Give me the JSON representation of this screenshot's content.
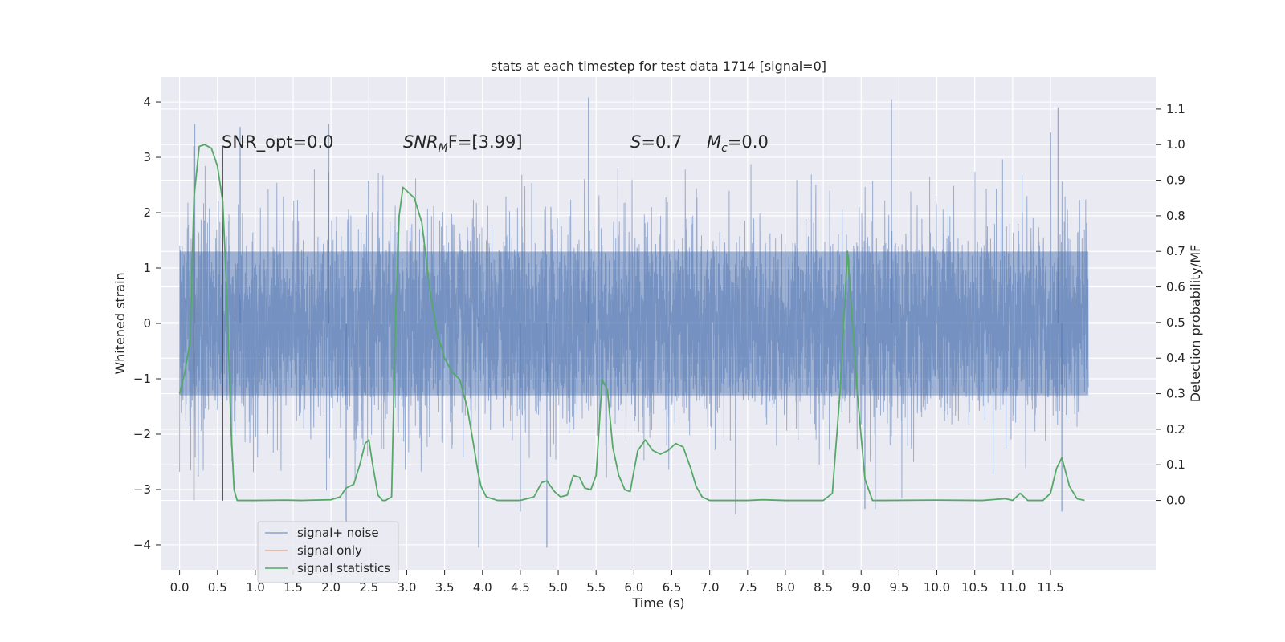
{
  "chart_data": {
    "type": "line",
    "title": "stats at each timestep for test data 1714 [signal=0]",
    "xlabel": "Time (s)",
    "ylabel": "Whitened strain",
    "ylabel_right": "Detection probability/MF",
    "xlim": [
      -0.25,
      12.9
    ],
    "ylim": [
      -4.45,
      4.45
    ],
    "ylim_right": [
      -0.195,
      1.19
    ],
    "x_ticks": [
      "0.0",
      "0.5",
      "1.0",
      "1.5",
      "2.0",
      "2.5",
      "3.0",
      "3.5",
      "4.0",
      "4.5",
      "5.0",
      "5.5",
      "6.0",
      "6.5",
      "7.0",
      "7.5",
      "8.0",
      "8.5",
      "9.0",
      "9.5",
      "10.0",
      "10.5",
      "11.0",
      "11.5"
    ],
    "y_ticks": [
      "4",
      "3",
      "2",
      "1",
      "0",
      "−1",
      "−2",
      "−3",
      "−4"
    ],
    "y_ticks_right": [
      "1.1",
      "1.0",
      "0.9",
      "0.8",
      "0.7",
      "0.6",
      "0.5",
      "0.4",
      "0.3",
      "0.2",
      "0.1",
      "0.0"
    ],
    "grid": true,
    "legend_position": "lower-left",
    "annotations": {
      "snr_opt": "SNR_opt=0.0",
      "snr_mf_base": "SNR",
      "snr_mf_sub": "M",
      "snr_mf_rest": "F=[3.99]",
      "s_var": "S",
      "s_rest": "=0.7",
      "mc_var": "M",
      "mc_sub": "c",
      "mc_rest": "=0.0"
    },
    "markers": {
      "x": [
        0.19,
        0.57
      ],
      "y_range": [
        -3.2,
        3.2
      ]
    },
    "series": [
      {
        "name": "signal+ noise",
        "color": "#4c72b0",
        "kind": "noise",
        "x_range": [
          0.0,
          12.0
        ],
        "band": [
          -1.3,
          1.3
        ],
        "extremes": [
          [
            0.2,
            3.6
          ],
          [
            0.8,
            3.55
          ],
          [
            1.97,
            3.6
          ],
          [
            5.4,
            4.08
          ],
          [
            9.4,
            4.05
          ],
          [
            11.6,
            3.9
          ],
          [
            3.95,
            -4.05
          ],
          [
            4.85,
            -4.05
          ],
          [
            2.2,
            -3.6
          ],
          [
            4.5,
            -3.4
          ],
          [
            11.65,
            -3.4
          ],
          [
            9.05,
            -3.35
          ]
        ]
      },
      {
        "name": "signal only",
        "color": "#dd8452",
        "kind": "line",
        "x": [],
        "y": []
      },
      {
        "name": "signal statistics",
        "color": "#55a868",
        "kind": "line",
        "axis": "right",
        "x": [
          0.0,
          0.07,
          0.14,
          0.19,
          0.26,
          0.33,
          0.42,
          0.5,
          0.57,
          0.62,
          0.68,
          0.72,
          0.76,
          0.85,
          1.0,
          1.4,
          1.6,
          2.0,
          2.12,
          2.2,
          2.3,
          2.38,
          2.45,
          2.5,
          2.55,
          2.62,
          2.68,
          2.72,
          2.8,
          2.85,
          2.9,
          2.95,
          3.0,
          3.1,
          3.2,
          3.3,
          3.4,
          3.5,
          3.6,
          3.7,
          3.8,
          3.88,
          3.94,
          3.98,
          4.05,
          4.2,
          4.5,
          4.68,
          4.78,
          4.85,
          4.95,
          5.03,
          5.12,
          5.2,
          5.28,
          5.35,
          5.43,
          5.5,
          5.58,
          5.65,
          5.72,
          5.8,
          5.88,
          5.95,
          6.05,
          6.15,
          6.25,
          6.35,
          6.45,
          6.55,
          6.65,
          6.75,
          6.82,
          6.9,
          7.0,
          7.5,
          7.7,
          8.0,
          8.5,
          8.62,
          8.72,
          8.82,
          8.95,
          9.05,
          9.15,
          9.3,
          10.0,
          10.6,
          10.9,
          11.0,
          11.1,
          11.2,
          11.4,
          11.5,
          11.58,
          11.65,
          11.75,
          11.85,
          11.95
        ],
        "y": [
          0.3,
          0.36,
          0.45,
          0.85,
          0.995,
          1.0,
          0.99,
          0.94,
          0.84,
          0.6,
          0.2,
          0.03,
          0.0,
          0.0,
          0.0,
          0.001,
          0.0,
          0.002,
          0.01,
          0.035,
          0.045,
          0.1,
          0.16,
          0.17,
          0.1,
          0.015,
          0.0,
          0.0,
          0.01,
          0.5,
          0.8,
          0.88,
          0.87,
          0.85,
          0.78,
          0.6,
          0.47,
          0.4,
          0.36,
          0.34,
          0.26,
          0.16,
          0.08,
          0.04,
          0.01,
          0.0,
          0.0,
          0.01,
          0.05,
          0.055,
          0.025,
          0.01,
          0.015,
          0.07,
          0.065,
          0.035,
          0.03,
          0.07,
          0.34,
          0.31,
          0.15,
          0.07,
          0.03,
          0.025,
          0.14,
          0.17,
          0.14,
          0.13,
          0.14,
          0.16,
          0.15,
          0.09,
          0.04,
          0.01,
          0.0,
          0.0,
          0.002,
          0.0,
          0.0,
          0.02,
          0.3,
          0.7,
          0.3,
          0.06,
          0.0,
          0.0,
          0.001,
          0.0,
          0.005,
          0.0,
          0.02,
          0.0,
          0.0,
          0.02,
          0.09,
          0.12,
          0.04,
          0.005,
          0.0
        ]
      }
    ]
  }
}
